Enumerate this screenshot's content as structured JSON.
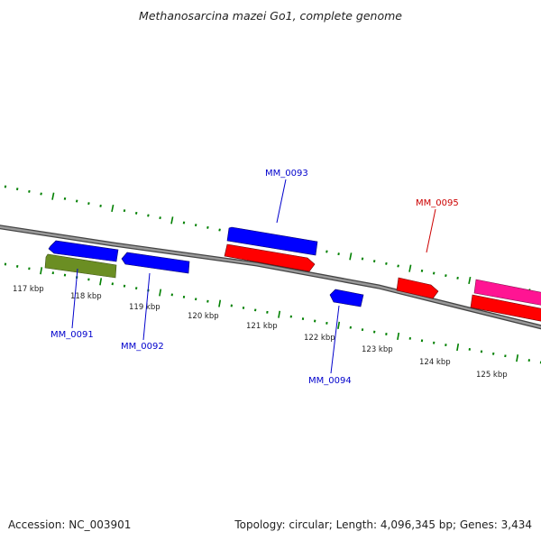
{
  "title": "Methanosarcina mazei Go1, complete genome",
  "footer": {
    "accession": "Accession: NC_003901",
    "summary": "Topology: circular; Length: 4,096,345 bp; Genes: 3,434"
  },
  "colors": {
    "forward_cds": "#ff0000",
    "reverse_cds": "#0000ff",
    "rna": "#ff1493",
    "other": "#6b8e23",
    "backbone": "#808080",
    "gc_ticks": "#008000",
    "forward_label": "#cc0000",
    "reverse_label": "#0000cc"
  },
  "scale": {
    "tick_labels": [
      "117 kbp",
      "118 kbp",
      "119 kbp",
      "120 kbp",
      "121 kbp",
      "122 kbp",
      "123 kbp",
      "124 kbp",
      "125 kbp"
    ]
  },
  "genes": [
    {
      "label": "MM_0091",
      "strand": "reverse",
      "type": "CDS"
    },
    {
      "label": "MM_0092",
      "strand": "reverse",
      "type": "CDS"
    },
    {
      "label": "MM_0093",
      "strand": "reverse",
      "type": "CDS"
    },
    {
      "label": "MM_0094",
      "strand": "reverse",
      "type": "CDS"
    },
    {
      "label": "MM_0095",
      "strand": "forward",
      "type": "CDS"
    }
  ]
}
